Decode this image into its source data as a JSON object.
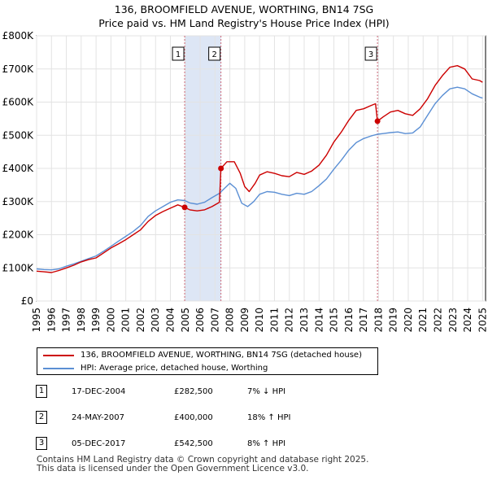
{
  "title_line1": "136, BROOMFIELD AVENUE, WORTHING, BN14 7SG",
  "title_line2": "Price paid vs. HM Land Registry's House Price Index (HPI)",
  "colors": {
    "property": "#cc0000",
    "hpi": "#5b8fd4",
    "shade": "#dde6f5",
    "marker_line": "#cc6677"
  },
  "legend": {
    "property_label": "136, BROOMFIELD AVENUE, WORTHING, BN14 7SG (detached house)",
    "hpi_label": "HPI: Average price, detached house, Worthing"
  },
  "sales": [
    {
      "num": "1",
      "date": "17-DEC-2004",
      "price": "£282,500",
      "hpi": "7% ↓ HPI"
    },
    {
      "num": "2",
      "date": "24-MAY-2007",
      "price": "£400,000",
      "hpi": "18% ↑ HPI"
    },
    {
      "num": "3",
      "date": "05-DEC-2017",
      "price": "£542,500",
      "hpi": "8% ↑ HPI"
    }
  ],
  "footer_line1": "Contains HM Land Registry data © Crown copyright and database right 2025.",
  "footer_line2": "This data is licensed under the Open Government Licence v3.0.",
  "chart_data": {
    "type": "line",
    "title": "136, BROOMFIELD AVENUE, WORTHING, BN14 7SG — Price paid vs. HM Land Registry's House Price Index (HPI)",
    "xlim": [
      1995,
      2025.2
    ],
    "ylim": [
      0,
      800000
    ],
    "y_ticks": [
      0,
      100000,
      200000,
      300000,
      400000,
      500000,
      600000,
      700000,
      800000
    ],
    "y_tick_labels": [
      "£0",
      "£100K",
      "£200K",
      "£300K",
      "£400K",
      "£500K",
      "£600K",
      "£700K",
      "£800K"
    ],
    "x_ticks": [
      1995,
      1996,
      1997,
      1998,
      1999,
      2000,
      2001,
      2002,
      2003,
      2004,
      2005,
      2006,
      2007,
      2008,
      2009,
      2010,
      2011,
      2012,
      2013,
      2014,
      2015,
      2016,
      2017,
      2018,
      2019,
      2020,
      2021,
      2022,
      2023,
      2024,
      2025
    ],
    "shaded_ranges": [
      [
        2004.96,
        2007.4
      ]
    ],
    "sale_markers": [
      {
        "label": "1",
        "x": 2004.96,
        "y": 282500
      },
      {
        "label": "2",
        "x": 2007.4,
        "y": 400000
      },
      {
        "label": "3",
        "x": 2017.93,
        "y": 542500
      }
    ],
    "series": [
      {
        "name": "136, BROOMFIELD AVENUE, WORTHING, BN14 7SG (detached house)",
        "x": [
          1995,
          1995.5,
          1996,
          1996.5,
          1997,
          1997.5,
          1998,
          1998.5,
          1999,
          1999.5,
          2000,
          2000.5,
          2001,
          2001.5,
          2002,
          2002.5,
          2003,
          2003.5,
          2004,
          2004.5,
          2004.96,
          2005.3,
          2005.8,
          2006.3,
          2006.8,
          2007.3,
          2007.4,
          2007.8,
          2008.3,
          2008.7,
          2009.0,
          2009.3,
          2009.7,
          2010.0,
          2010.5,
          2011,
          2011.5,
          2012,
          2012.5,
          2013,
          2013.5,
          2014,
          2014.5,
          2015,
          2015.5,
          2016,
          2016.5,
          2017,
          2017.5,
          2017.8,
          2017.93,
          2018.3,
          2018.8,
          2019.3,
          2019.8,
          2020.3,
          2020.8,
          2021.3,
          2021.8,
          2022.3,
          2022.8,
          2023.3,
          2023.8,
          2024.3,
          2024.8,
          2025.0
        ],
        "y": [
          90000,
          88000,
          86000,
          92000,
          100000,
          108000,
          118000,
          125000,
          130000,
          145000,
          160000,
          172000,
          185000,
          200000,
          215000,
          240000,
          258000,
          270000,
          280000,
          290000,
          282500,
          275000,
          272000,
          275000,
          285000,
          298000,
          400000,
          420000,
          420000,
          385000,
          345000,
          330000,
          355000,
          380000,
          390000,
          385000,
          378000,
          375000,
          388000,
          382000,
          392000,
          410000,
          440000,
          480000,
          510000,
          545000,
          575000,
          580000,
          590000,
          595000,
          542500,
          555000,
          570000,
          575000,
          565000,
          560000,
          580000,
          610000,
          650000,
          680000,
          705000,
          710000,
          700000,
          670000,
          665000,
          660000
        ]
      },
      {
        "name": "HPI: Average price, detached house, Worthing",
        "x": [
          1995,
          1995.5,
          1996,
          1996.5,
          1997,
          1997.5,
          1998,
          1998.5,
          1999,
          1999.5,
          2000,
          2000.5,
          2001,
          2001.5,
          2002,
          2002.5,
          2003,
          2003.5,
          2004,
          2004.5,
          2004.96,
          2005.3,
          2005.8,
          2006.3,
          2006.8,
          2007.3,
          2007.6,
          2008.0,
          2008.4,
          2008.8,
          2009.2,
          2009.6,
          2010.0,
          2010.5,
          2011,
          2011.5,
          2012,
          2012.5,
          2013,
          2013.5,
          2014,
          2014.5,
          2015,
          2015.5,
          2016,
          2016.5,
          2017,
          2017.5,
          2017.93,
          2018.3,
          2018.8,
          2019.3,
          2019.8,
          2020.3,
          2020.8,
          2021.3,
          2021.8,
          2022.3,
          2022.8,
          2023.3,
          2023.8,
          2024.3,
          2024.8,
          2025.0
        ],
        "y": [
          97000,
          95000,
          94000,
          97000,
          105000,
          112000,
          120000,
          128000,
          136000,
          150000,
          165000,
          180000,
          195000,
          210000,
          228000,
          255000,
          272000,
          285000,
          298000,
          305000,
          303000,
          296000,
          292000,
          298000,
          312000,
          325000,
          338000,
          355000,
          340000,
          295000,
          285000,
          300000,
          322000,
          330000,
          328000,
          322000,
          318000,
          325000,
          322000,
          330000,
          348000,
          368000,
          398000,
          425000,
          455000,
          478000,
          490000,
          498000,
          503000,
          505000,
          508000,
          510000,
          505000,
          507000,
          525000,
          560000,
          595000,
          620000,
          640000,
          645000,
          640000,
          625000,
          615000,
          612000
        ]
      }
    ]
  }
}
